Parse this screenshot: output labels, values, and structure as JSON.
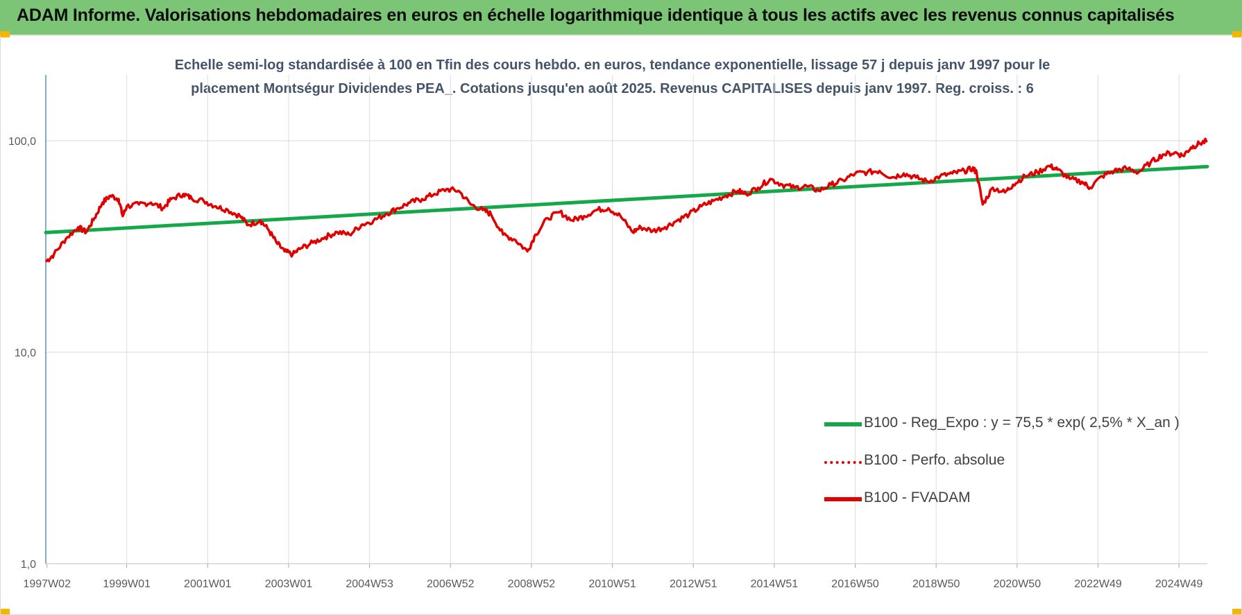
{
  "banner": {
    "title": "ADAM Informe. Valorisations hebdomadaires en euros en échelle logarithmique identique à tous les actifs avec les revenus connus capitalisés"
  },
  "chart_data": {
    "type": "line",
    "title_lines": [
      "Echelle semi-log standardisée à 100 en Tfin des cours hebdo. en euros, tendance exponentielle, lissage 57 j depuis janv 1997 pour le",
      "placement Montségur Dividendes PEA_. Cotations jusqu'en août 2025. Revenus CAPITALISES depuis janv 1997. Reg. croiss. : 6"
    ],
    "y_scale": "log",
    "ylim": [
      1,
      100
    ],
    "y_ticks": [
      "1,0",
      "10,0",
      "100,0"
    ],
    "y_tick_values": [
      1,
      10,
      100
    ],
    "xlim": [
      1997.0,
      2025.7
    ],
    "x_ticks": [
      {
        "label": "1997W02",
        "value": 1997.03
      },
      {
        "label": "1999W01",
        "value": 1999.0
      },
      {
        "label": "2001W01",
        "value": 2001.0
      },
      {
        "label": "2003W01",
        "value": 2003.0
      },
      {
        "label": "2004W53",
        "value": 2005.0
      },
      {
        "label": "2006W52",
        "value": 2007.0
      },
      {
        "label": "2008W52",
        "value": 2009.0
      },
      {
        "label": "2010W51",
        "value": 2011.0
      },
      {
        "label": "2012W51",
        "value": 2013.0
      },
      {
        "label": "2014W51",
        "value": 2015.0
      },
      {
        "label": "2016W50",
        "value": 2017.0
      },
      {
        "label": "2018W50",
        "value": 2019.0
      },
      {
        "label": "2020W50",
        "value": 2021.0
      },
      {
        "label": "2022W49",
        "value": 2023.0
      },
      {
        "label": "2024W49",
        "value": 2025.0
      }
    ],
    "grid": true,
    "legend_position": "bottom-right",
    "series": [
      {
        "name": "B100 - Reg_Expo : y = 75,5 * exp( 2,5% *  X_an )",
        "color": "#14a84a",
        "style": "solid",
        "x": [
          1997.0,
          2025.7
        ],
        "y": [
          36.8,
          75.5
        ]
      },
      {
        "name": "B100 - Perfo. absolue",
        "color": "#e00000",
        "style": "dotted",
        "x": [],
        "y": []
      },
      {
        "name": "B100 - FVADAM",
        "color": "#e00000",
        "style": "solid",
        "x": [
          1997.0,
          1997.2,
          1997.5,
          1997.8,
          1998.0,
          1998.2,
          1998.4,
          1998.6,
          1998.8,
          1998.9,
          1999.0,
          1999.3,
          1999.6,
          1999.9,
          2000.1,
          2000.4,
          2000.6,
          2000.9,
          2001.2,
          2001.5,
          2001.8,
          2002.0,
          2002.3,
          2002.5,
          2002.7,
          2002.9,
          2003.1,
          2003.3,
          2003.6,
          2003.9,
          2004.2,
          2004.5,
          2004.8,
          2005.1,
          2005.4,
          2005.7,
          2006.0,
          2006.3,
          2006.6,
          2006.9,
          2007.2,
          2007.5,
          2007.8,
          2008.0,
          2008.3,
          2008.6,
          2008.9,
          2009.1,
          2009.4,
          2009.7,
          2010.0,
          2010.3,
          2010.6,
          2010.9,
          2011.2,
          2011.5,
          2011.7,
          2012.0,
          2012.3,
          2012.6,
          2012.9,
          2013.2,
          2013.5,
          2013.8,
          2014.1,
          2014.3,
          2014.6,
          2014.9,
          2015.2,
          2015.5,
          2015.8,
          2016.1,
          2016.4,
          2016.7,
          2017.0,
          2017.3,
          2017.6,
          2017.9,
          2018.2,
          2018.5,
          2018.8,
          2019.1,
          2019.4,
          2019.7,
          2019.9,
          2020.0,
          2020.15,
          2020.4,
          2020.7,
          2020.9,
          2021.2,
          2021.5,
          2021.8,
          2022.0,
          2022.3,
          2022.6,
          2022.8,
          2023.1,
          2023.4,
          2023.7,
          2024.0,
          2024.3,
          2024.6,
          2024.9,
          2025.1,
          2025.3,
          2025.5,
          2025.7
        ],
        "y": [
          26.8,
          29.0,
          34.5,
          39.0,
          37.0,
          43.0,
          51.0,
          55.0,
          53.0,
          44.0,
          49.0,
          50.0,
          51.0,
          48.0,
          53.0,
          56.0,
          53.5,
          52.0,
          49.0,
          47.0,
          44.0,
          40.0,
          42.0,
          38.0,
          33.0,
          30.0,
          29.0,
          31.0,
          33.0,
          35.0,
          37.0,
          36.0,
          40.0,
          42.0,
          45.0,
          48.0,
          51.0,
          53.0,
          56.0,
          59.0,
          58.0,
          50.0,
          47.0,
          45.0,
          36.0,
          34.0,
          30.0,
          36.0,
          43.0,
          46.0,
          42.0,
          44.0,
          47.0,
          48.0,
          44.0,
          37.0,
          39.0,
          37.5,
          39.0,
          42.0,
          45.0,
          49.0,
          52.0,
          55.0,
          58.0,
          56.0,
          60.0,
          66.0,
          62.0,
          60.0,
          61.0,
          58.0,
          62.0,
          65.0,
          70.0,
          71.0,
          72.0,
          67.0,
          70.0,
          67.0,
          64.0,
          68.0,
          70.0,
          72.0,
          74.0,
          71.0,
          50.0,
          60.0,
          57.0,
          62.0,
          68.0,
          71.0,
          76.0,
          73.0,
          66.0,
          64.0,
          60.0,
          68.0,
          72.0,
          74.0,
          71.0,
          79.0,
          86.0,
          88.0,
          85.0,
          93.0,
          97.0,
          100.0
        ]
      }
    ]
  }
}
